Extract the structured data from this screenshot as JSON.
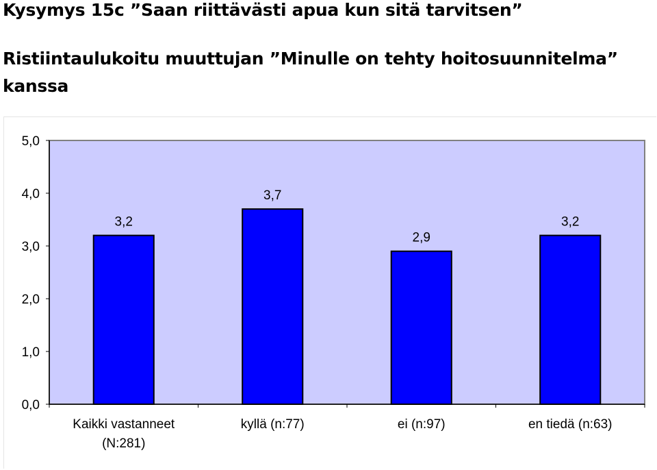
{
  "title": "Kysymys 15c ”Saan riittävästi apua kun sitä tarvitsen”",
  "subtitle": "Ristiintaulukoitu muuttujan ”Minulle on tehty hoitosuunnitelma” kanssa",
  "chart_data": {
    "type": "bar",
    "categories": [
      [
        "Kaikki vastanneet",
        "(N:281)"
      ],
      [
        "kyllä (n:77)"
      ],
      [
        "ei (n:97)"
      ],
      [
        "en tiedä (n:63)"
      ]
    ],
    "values": [
      3.2,
      3.7,
      2.9,
      3.2
    ],
    "value_labels": [
      "3,2",
      "3,7",
      "2,9",
      "3,2"
    ],
    "yticks": [
      "0,0",
      "1,0",
      "2,0",
      "3,0",
      "4,0",
      "5,0"
    ],
    "ylim": [
      0,
      5
    ],
    "grid": false,
    "colors": {
      "plot_bg": "#ccccff",
      "bar": "#0000ff",
      "bar_edge": "#000000"
    }
  }
}
